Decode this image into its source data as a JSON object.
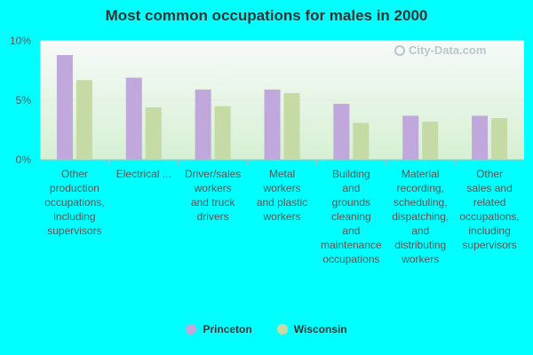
{
  "chart_data": {
    "type": "bar",
    "title": "Most common occupations for males in 2000",
    "ylim": [
      0,
      10
    ],
    "yticks": [
      "0%",
      "5%",
      "10%"
    ],
    "categories": [
      [
        "Other",
        "production",
        "occupations,",
        "including",
        "supervisors"
      ],
      [
        "Electrical ..."
      ],
      [
        "Driver/sales",
        "workers",
        "and truck",
        "drivers"
      ],
      [
        "Metal",
        "workers",
        "and plastic",
        "workers"
      ],
      [
        "Building",
        "and",
        "grounds",
        "cleaning",
        "and",
        "maintenance",
        "occupations"
      ],
      [
        "Material",
        "recording,",
        "scheduling,",
        "dispatching,",
        "and",
        "distributing",
        "workers"
      ],
      [
        "Other",
        "sales and",
        "related",
        "occupations,",
        "including",
        "supervisors"
      ]
    ],
    "series": [
      {
        "name": "Princeton",
        "color": "#c0a8dc",
        "values": [
          8.8,
          6.9,
          5.9,
          5.9,
          4.7,
          3.7,
          3.7
        ]
      },
      {
        "name": "Wisconsin",
        "color": "#c6daa6",
        "values": [
          6.7,
          4.4,
          4.5,
          5.6,
          3.1,
          3.2,
          3.5
        ]
      }
    ],
    "grid": true,
    "legend": "bottom"
  },
  "watermark": "City-Data.com"
}
